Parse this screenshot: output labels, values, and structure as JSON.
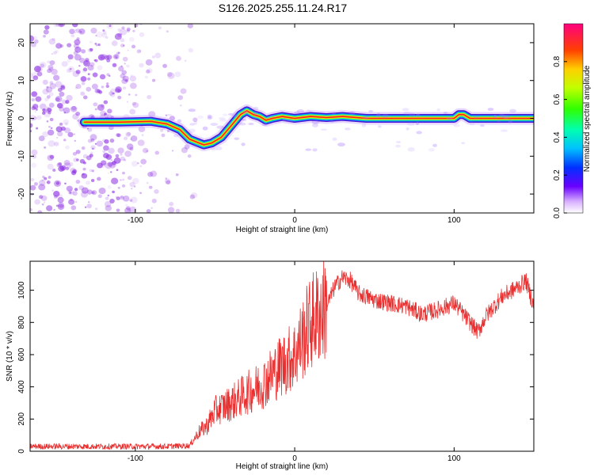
{
  "title": "S126.2025.255.11.24.R17",
  "colors": {
    "snr_line": "#e83030",
    "trace_mid": "#ffd000",
    "trace_core": "#ff2020",
    "trace_edge": "#3a00cc",
    "scatter": "#8a2be2"
  },
  "chart_data": [
    {
      "type": "heatmap",
      "name": "spectrogram",
      "xlabel": "Height of straight line (km)",
      "ylabel": "Frequency (Hz)",
      "xlim": [
        -166,
        150
      ],
      "ylim": [
        -25,
        25
      ],
      "xticks": [
        -100,
        0,
        100
      ],
      "yticks": [
        -20,
        -10,
        0,
        10,
        20
      ],
      "colorbar": {
        "label": "Normalized spectral amplitude",
        "range": [
          0,
          1
        ],
        "ticks": [
          "0.0",
          "0.2",
          "0.4",
          "0.6",
          "0.8"
        ]
      },
      "ridge": {
        "x": [
          -132,
          -110,
          -90,
          -80,
          -72,
          -66,
          -60,
          -57,
          -52,
          -46,
          -40,
          -34,
          -30,
          -26,
          -22,
          -18,
          -14,
          -8,
          0,
          10,
          20,
          30,
          45,
          60,
          80,
          100,
          103,
          106,
          110,
          130,
          150
        ],
        "freq": [
          -1,
          -1,
          -0.8,
          -1.5,
          -3,
          -5.5,
          -6.5,
          -7,
          -6.5,
          -5,
          -2,
          1,
          2,
          1,
          0.5,
          -0.5,
          0,
          0.5,
          0,
          0.5,
          0.2,
          0.5,
          0,
          0,
          0,
          0,
          1,
          1,
          0,
          0,
          0
        ]
      }
    },
    {
      "type": "line",
      "name": "snr",
      "xlabel": "Height of straight line (km)",
      "ylabel": "SNR (10 * v/v)",
      "xlim": [
        -166,
        150
      ],
      "ylim": [
        0,
        1180
      ],
      "xticks": [
        -100,
        0,
        100
      ],
      "yticks": [
        0,
        200,
        400,
        600,
        800,
        1000
      ],
      "series": [
        {
          "name": "SNR",
          "x": [
            -166,
            -150,
            -120,
            -100,
            -80,
            -66,
            -60,
            -55,
            -50,
            -40,
            -30,
            -20,
            -10,
            0,
            10,
            20,
            25,
            30,
            35,
            40,
            50,
            60,
            70,
            80,
            90,
            100,
            110,
            115,
            120,
            130,
            140,
            145,
            150
          ],
          "y": [
            30,
            30,
            30,
            30,
            30,
            35,
            120,
            160,
            250,
            300,
            360,
            420,
            520,
            600,
            800,
            900,
            1020,
            1080,
            1060,
            980,
            940,
            920,
            900,
            850,
            880,
            920,
            800,
            740,
            840,
            960,
            1020,
            1060,
            900
          ]
        }
      ]
    }
  ]
}
